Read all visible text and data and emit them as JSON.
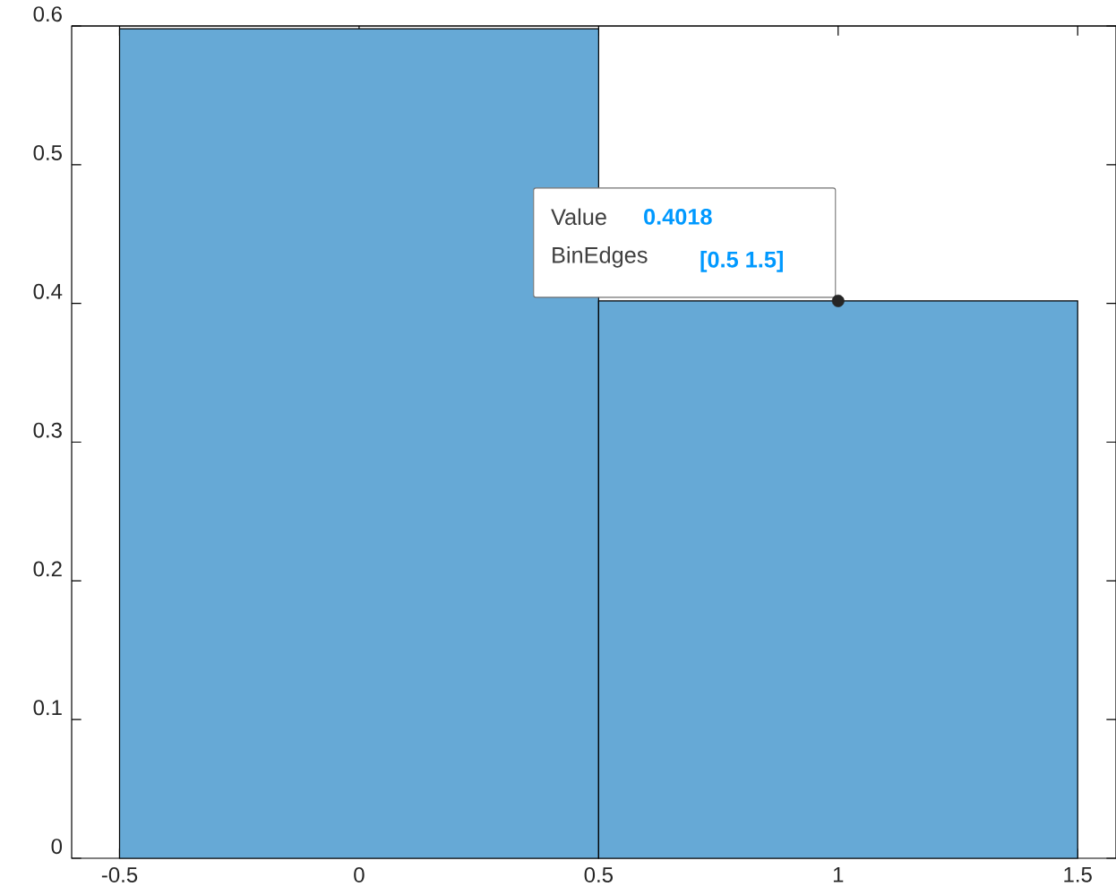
{
  "chart_data": {
    "type": "histogram",
    "bins": [
      -0.5,
      0.5,
      1.5
    ],
    "values": [
      0.598,
      0.4018
    ],
    "color": "#66a9d6",
    "xlim": [
      -0.6,
      1.58
    ],
    "ylim": [
      0,
      0.6
    ],
    "xticks": [
      -0.5,
      0,
      0.5,
      1,
      1.5
    ],
    "yticks": [
      0,
      0.1,
      0.2,
      0.3,
      0.4,
      0.5,
      0.6
    ],
    "grid": false,
    "series": [
      {
        "type": "scatter",
        "x": [
          1
        ],
        "values": [
          0.4018
        ],
        "color": "#262626"
      }
    ],
    "annotations": [
      "Value",
      "0.4018",
      "BinEdges",
      "[0.5 1.5]"
    ]
  }
}
